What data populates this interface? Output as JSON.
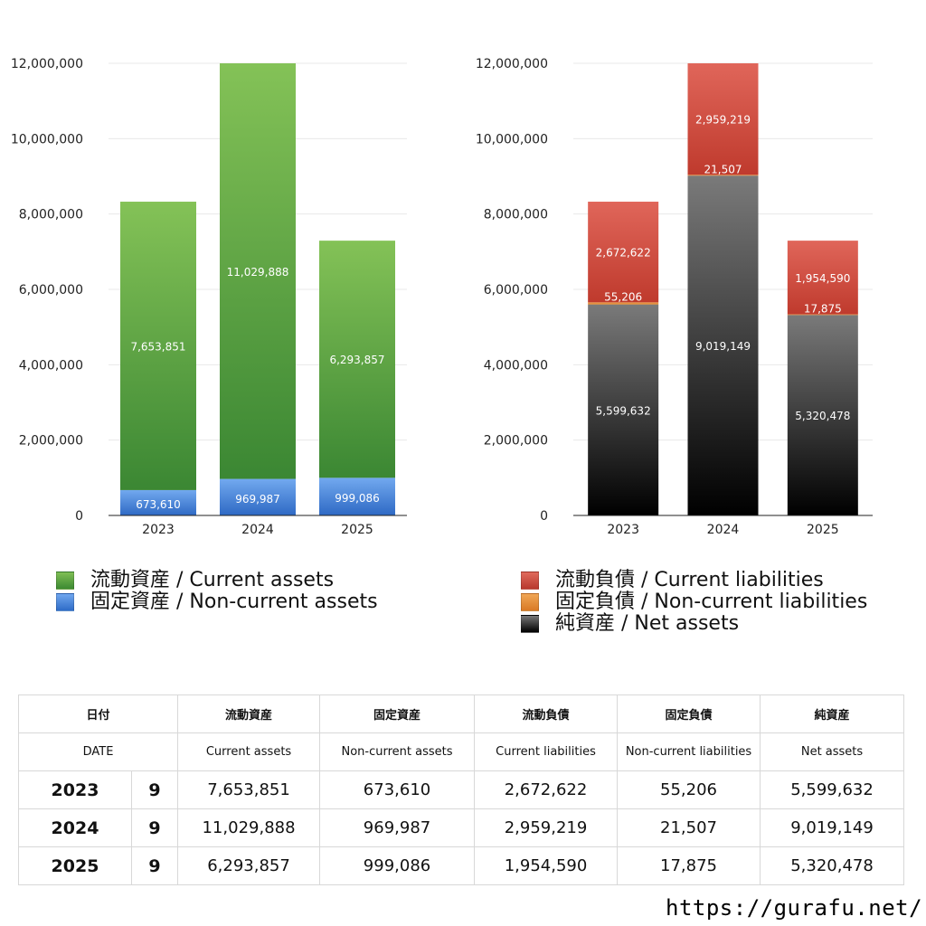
{
  "colors": {
    "current_assets": "#4f9d3a",
    "non_current_assets": "#3f7fd6",
    "current_liabilities": "#d0473a",
    "non_current_liabilities": "#e8923a",
    "net_assets": "#222222"
  },
  "chart_data": [
    {
      "type": "bar",
      "stacked": true,
      "categories": [
        "2023",
        "2024",
        "2025"
      ],
      "series": [
        {
          "key": "non_current_assets",
          "values": [
            673610,
            969987,
            999086
          ],
          "labels": [
            "673,610",
            "969,987",
            "999,086"
          ]
        },
        {
          "key": "current_assets",
          "values": [
            7653851,
            11029888,
            6293857
          ],
          "labels": [
            "7,653,851",
            "11,029,888",
            "6,293,857"
          ]
        }
      ],
      "ylim": [
        0,
        12000000
      ],
      "yticks": [
        0,
        2000000,
        4000000,
        6000000,
        8000000,
        10000000,
        12000000
      ],
      "ytick_labels": [
        "0",
        "2,000,000",
        "4,000,000",
        "6,000,000",
        "8,000,000",
        "10,000,000",
        "12,000,000"
      ],
      "grid": true,
      "legend": [
        {
          "key": "current_assets",
          "label": "流動資産 / Current assets"
        },
        {
          "key": "non_current_assets",
          "label": "固定資産 / Non-current assets"
        }
      ]
    },
    {
      "type": "bar",
      "stacked": true,
      "categories": [
        "2023",
        "2024",
        "2025"
      ],
      "series": [
        {
          "key": "net_assets",
          "values": [
            5599632,
            9019149,
            5320478
          ],
          "labels": [
            "5,599,632",
            "9,019,149",
            "5,320,478"
          ]
        },
        {
          "key": "non_current_liabilities",
          "values": [
            55206,
            21507,
            17875
          ],
          "labels": [
            "55,206",
            "21,507",
            "17,875"
          ]
        },
        {
          "key": "current_liabilities",
          "values": [
            2672622,
            2959219,
            1954590
          ],
          "labels": [
            "2,672,622",
            "2,959,219",
            "1,954,590"
          ]
        }
      ],
      "ylim": [
        0,
        12000000
      ],
      "yticks": [
        0,
        2000000,
        4000000,
        6000000,
        8000000,
        10000000,
        12000000
      ],
      "ytick_labels": [
        "0",
        "2,000,000",
        "4,000,000",
        "6,000,000",
        "8,000,000",
        "10,000,000",
        "12,000,000"
      ],
      "grid": true,
      "legend": [
        {
          "key": "current_liabilities",
          "label": "流動負債 / Current liabilities"
        },
        {
          "key": "non_current_liabilities",
          "label": "固定負債 / Non-current liabilities"
        },
        {
          "key": "net_assets",
          "label": "純資産 / Net assets"
        }
      ]
    }
  ],
  "table": {
    "header_jp": [
      "日付",
      "流動資産",
      "固定資産",
      "流動負債",
      "固定負債",
      "純資産"
    ],
    "header_en": [
      "DATE",
      "Current assets",
      "Non-current assets",
      "Current liabilities",
      "Non-current liabilities",
      "Net assets"
    ],
    "rows": [
      {
        "year": "2023",
        "month": "9",
        "cells": [
          "7,653,851",
          "673,610",
          "2,672,622",
          "55,206",
          "5,599,632"
        ]
      },
      {
        "year": "2024",
        "month": "9",
        "cells": [
          "11,029,888",
          "969,987",
          "2,959,219",
          "21,507",
          "9,019,149"
        ]
      },
      {
        "year": "2025",
        "month": "9",
        "cells": [
          "6,293,857",
          "999,086",
          "1,954,590",
          "17,875",
          "5,320,478"
        ]
      }
    ]
  },
  "footer": {
    "url": "https://gurafu.net/"
  }
}
